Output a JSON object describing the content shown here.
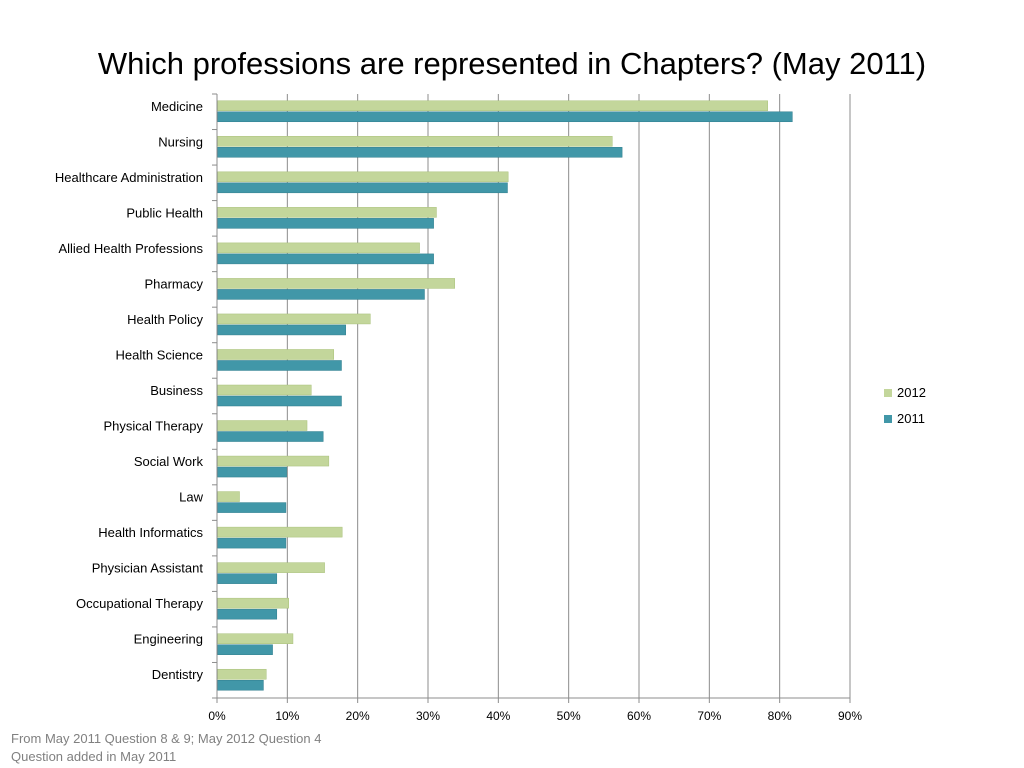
{
  "title": "Which professions are represented in Chapters? (May 2011)",
  "footnotes": [
    "From May 2011 Question 8 & 9; May 2012 Question 4",
    "Question added in May 2011"
  ],
  "chart_data": {
    "type": "bar",
    "orientation": "horizontal",
    "title": "Which professions are represented in Chapters? (May 2011)",
    "categories": [
      "Medicine",
      "Nursing",
      "Healthcare Administration",
      "Public Health",
      "Allied Health Professions",
      "Pharmacy",
      "Health Policy",
      "Health Science",
      "Business",
      "Physical Therapy",
      "Social Work",
      "Law",
      "Health Informatics",
      "Physician Assistant",
      "Occupational Therapy",
      "Engineering",
      "Dentistry"
    ],
    "series": [
      {
        "name": "2012",
        "color": "#c3d69b",
        "values": [
          78.3,
          56.2,
          41.4,
          31.2,
          28.8,
          33.8,
          21.8,
          16.6,
          13.4,
          12.8,
          15.9,
          3.2,
          17.8,
          15.3,
          10.2,
          10.8,
          7.0
        ]
      },
      {
        "name": "2011",
        "color": "#4197a8",
        "values": [
          81.8,
          57.6,
          41.3,
          30.8,
          30.8,
          29.5,
          18.3,
          17.7,
          17.7,
          15.1,
          9.9,
          9.8,
          9.8,
          8.5,
          8.5,
          7.9,
          6.6
        ]
      }
    ],
    "xlim": [
      0,
      90
    ],
    "xticks": [
      "0%",
      "10%",
      "20%",
      "30%",
      "40%",
      "50%",
      "60%",
      "70%",
      "80%",
      "90%"
    ],
    "tick_step": 10,
    "grid": "vertical",
    "legend_position": "right",
    "xlabel": "",
    "ylabel": ""
  }
}
